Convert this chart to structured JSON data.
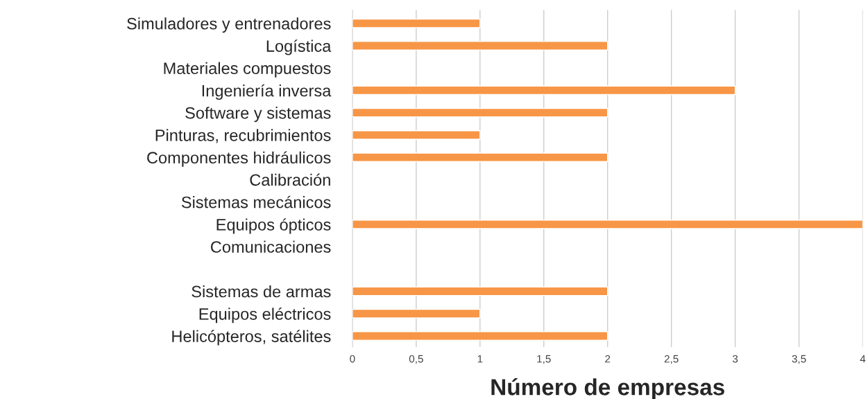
{
  "chart_data": {
    "type": "bar",
    "orientation": "horizontal",
    "xlabel": "Número de empresas",
    "categories": [
      "Simuladores y entrenadores",
      "Logística",
      "Materiales compuestos",
      "Ingeniería inversa",
      "Software y sistemas",
      "Pinturas, recubrimientos",
      "Componentes hidráulicos",
      "Calibración",
      "Sistemas mecánicos",
      "Equipos ópticos",
      "Comunicaciones",
      null,
      "Sistemas de armas",
      "Equipos eléctricos",
      "Helicópteros, satélites"
    ],
    "values": [
      1,
      2,
      null,
      3,
      2,
      1,
      2,
      null,
      null,
      4,
      null,
      null,
      2,
      1,
      2
    ],
    "color": "#f79646",
    "xlim": [
      0,
      4
    ],
    "xticks": [
      0,
      {
        "value": 0.5,
        "label": "0,5"
      },
      1,
      {
        "value": 1.5,
        "label": "1,5"
      },
      2,
      {
        "value": 2.5,
        "label": "2,5"
      },
      3,
      {
        "value": 3.5,
        "label": "3,5"
      },
      4
    ],
    "grid": "x",
    "legend": false
  }
}
